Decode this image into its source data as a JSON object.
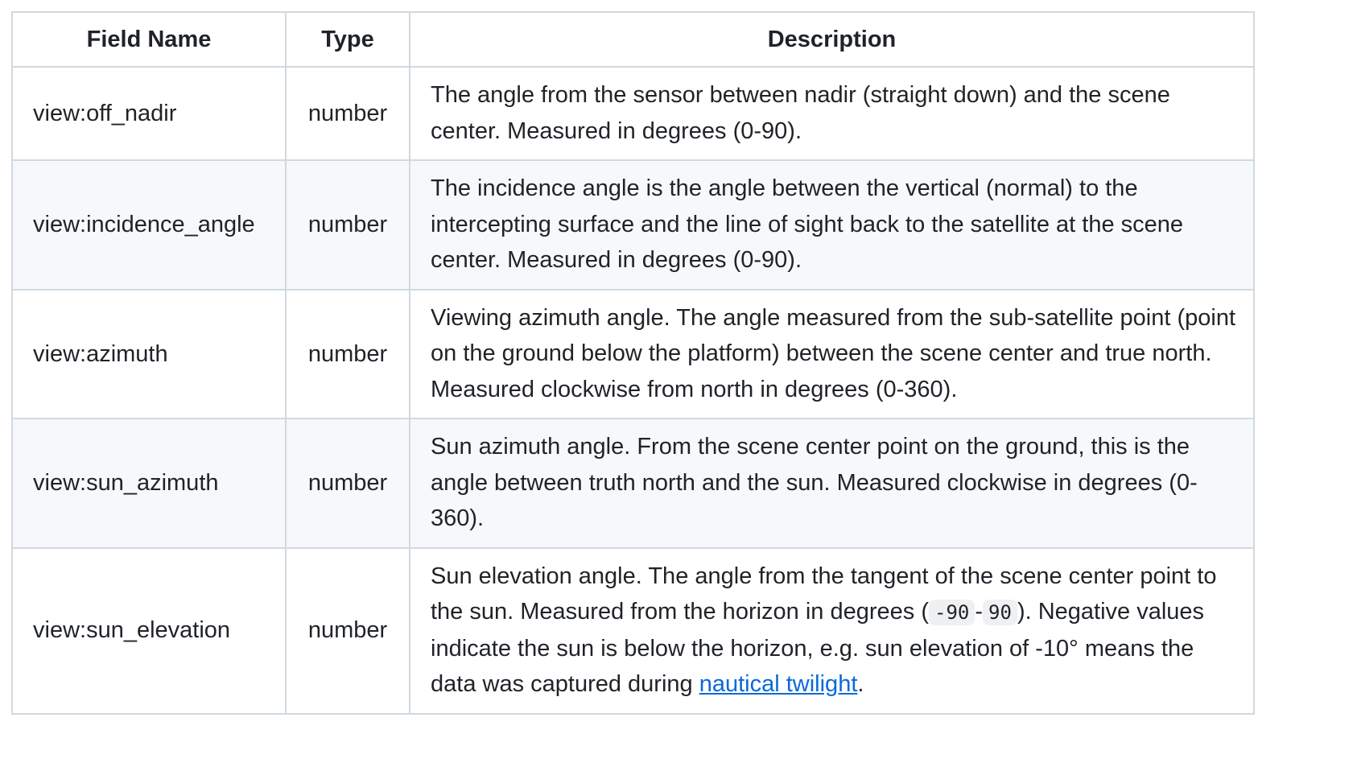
{
  "table": {
    "headers": {
      "field_name": "Field Name",
      "type": "Type",
      "description": "Description"
    },
    "rows": [
      {
        "field": "view:off_nadir",
        "type": "number",
        "description": "The angle from the sensor between nadir (straight down) and the scene center. Measured in degrees (0-90)."
      },
      {
        "field": "view:incidence_angle",
        "type": "number",
        "description": "The incidence angle is the angle between the vertical (normal) to the intercepting surface and the line of sight back to the satellite at the scene center. Measured in degrees (0-90)."
      },
      {
        "field": "view:azimuth",
        "type": "number",
        "description": "Viewing azimuth angle. The angle measured from the sub-satellite point (point on the ground below the platform) between the scene center and true north. Measured clockwise from north in degrees (0-360)."
      },
      {
        "field": "view:sun_azimuth",
        "type": "number",
        "description": "Sun azimuth angle. From the scene center point on the ground, this is the angle between truth north and the sun. Measured clockwise in degrees (0-360)."
      },
      {
        "field": "view:sun_elevation",
        "type": "number",
        "description_parts": {
          "text_1": "Sun elevation angle. The angle from the tangent of the scene center point to the sun. Measured from the horizon in degrees (",
          "code_1": "-90",
          "text_2": "-",
          "code_2": "90",
          "text_3": "). Negative values indicate the sun is below the horizon, e.g. sun elevation of -10° means the data was captured during ",
          "link_text": "nautical twilight",
          "text_4": "."
        }
      }
    ]
  },
  "colors": {
    "border": "#d1d9e0",
    "stripe": "#f6f8fa",
    "text": "#1f2328",
    "link": "#0969da"
  }
}
